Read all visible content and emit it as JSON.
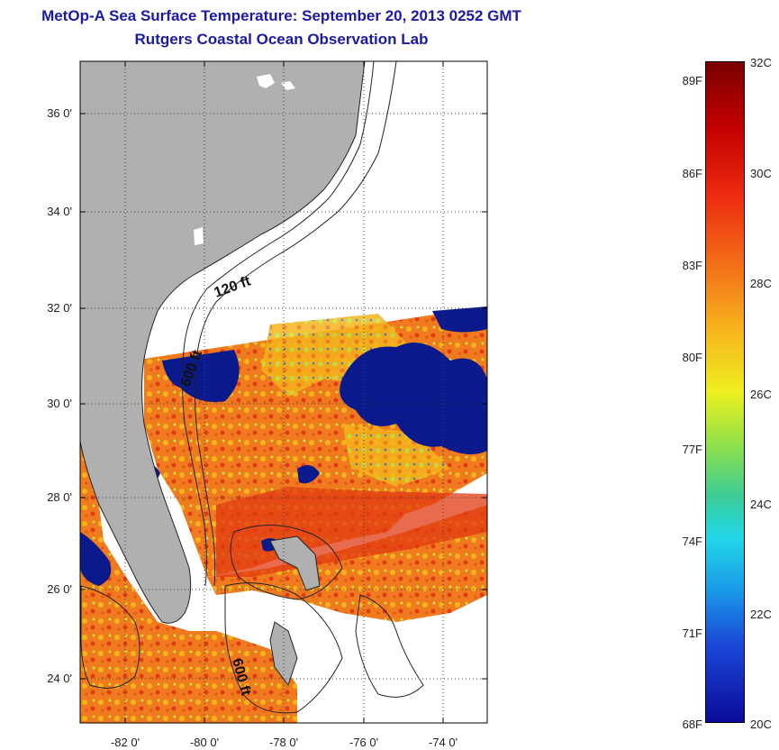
{
  "title": {
    "line1": "MetOp-A Sea Surface Temperature:  September 20, 2013 0252 GMT",
    "line2": "Rutgers Coastal Ocean Observation Lab"
  },
  "map": {
    "lat_ticks": [
      "36 0'",
      "34 0'",
      "32 0'",
      "30 0'",
      "28 0'",
      "26 0'",
      "24 0'"
    ],
    "lon_ticks": [
      "-82 0'",
      "-80 0'",
      "-78 0'",
      "-76 0'",
      "-74 0'"
    ],
    "contour_labels": [
      "120 ft",
      "600 ft",
      "600 ft"
    ],
    "colors": {
      "land": "#b0b0b0",
      "cloud": "#0a1a8c",
      "warm": "#f07a1e",
      "hot": "#e23a12",
      "mild": "#f4b41c",
      "cool": "#c9e23a"
    }
  },
  "colorbar": {
    "fahrenheit": [
      "89F",
      "86F",
      "83F",
      "80F",
      "77F",
      "74F",
      "71F",
      "68F"
    ],
    "celsius": [
      "32C",
      "30C",
      "28C",
      "26C",
      "24C",
      "22C",
      "20C"
    ],
    "range_c": [
      20,
      32
    ]
  }
}
